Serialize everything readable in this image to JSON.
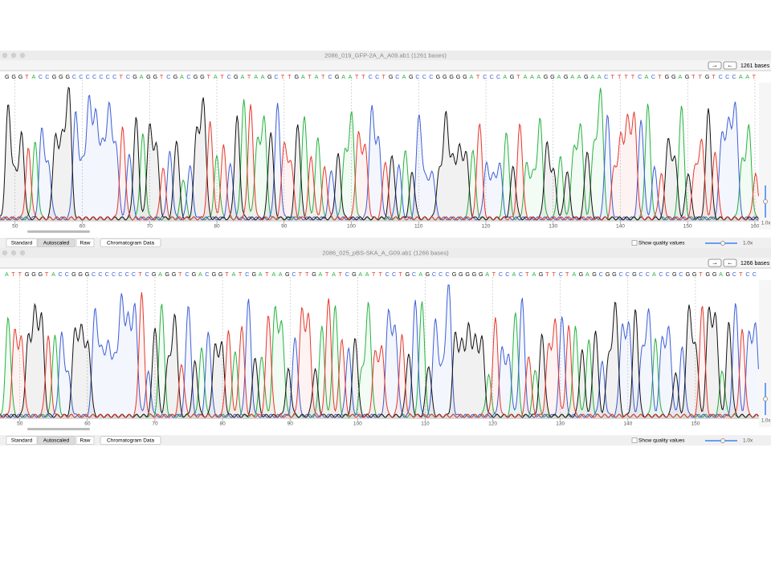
{
  "windows": [
    {
      "title": "2086_019_GFP-2A_A_A09.ab1  (1261 bases)",
      "bases": "1261 bases",
      "sequence": "GGGTACCGGGCCCCCCCTCGAGGTCGACGGTATCGATAAGCTTGATATCGAATTCCTGCAGCCCGGGGGATCCCAGTAAAGGAGAAGAACTTTTCACTGGAGTTGTCCCAAT",
      "xlim": [
        48,
        160.6
      ],
      "xticks": [
        50,
        60,
        70,
        80,
        90,
        100,
        110,
        120,
        130,
        140,
        150,
        160
      ],
      "buttons": [
        "Standard",
        "Autoscaled",
        "Raw"
      ],
      "data_button": "Chromatogram Data",
      "quality": "Show quality values",
      "zoom": "1.0x",
      "side_zoom": "1.0x"
    },
    {
      "title": "2086_025_pBS-SKA_A_G09.ab1  (1266 bases)",
      "bases": "1266 bases",
      "sequence": "ATTGGGTACCGGGCCCCCCCTCGAGGTCGACGGTATCGATAAGCTTGATATCGAATTCCTGCAGCCCGGGGGATCCACTAGTTCTAGAGCGGCCGCCACCGCGGTGGAGCTCC",
      "xlim": [
        47.3,
        159.4
      ],
      "xticks": [
        50,
        60,
        70,
        80,
        90,
        100,
        110,
        120,
        130,
        140,
        150
      ],
      "buttons": [
        "Standard",
        "Autoscaled",
        "Raw"
      ],
      "data_button": "Chromatogram Data",
      "quality": "Show quality values",
      "zoom": "1.0x",
      "side_zoom": "1.0x"
    }
  ]
}
